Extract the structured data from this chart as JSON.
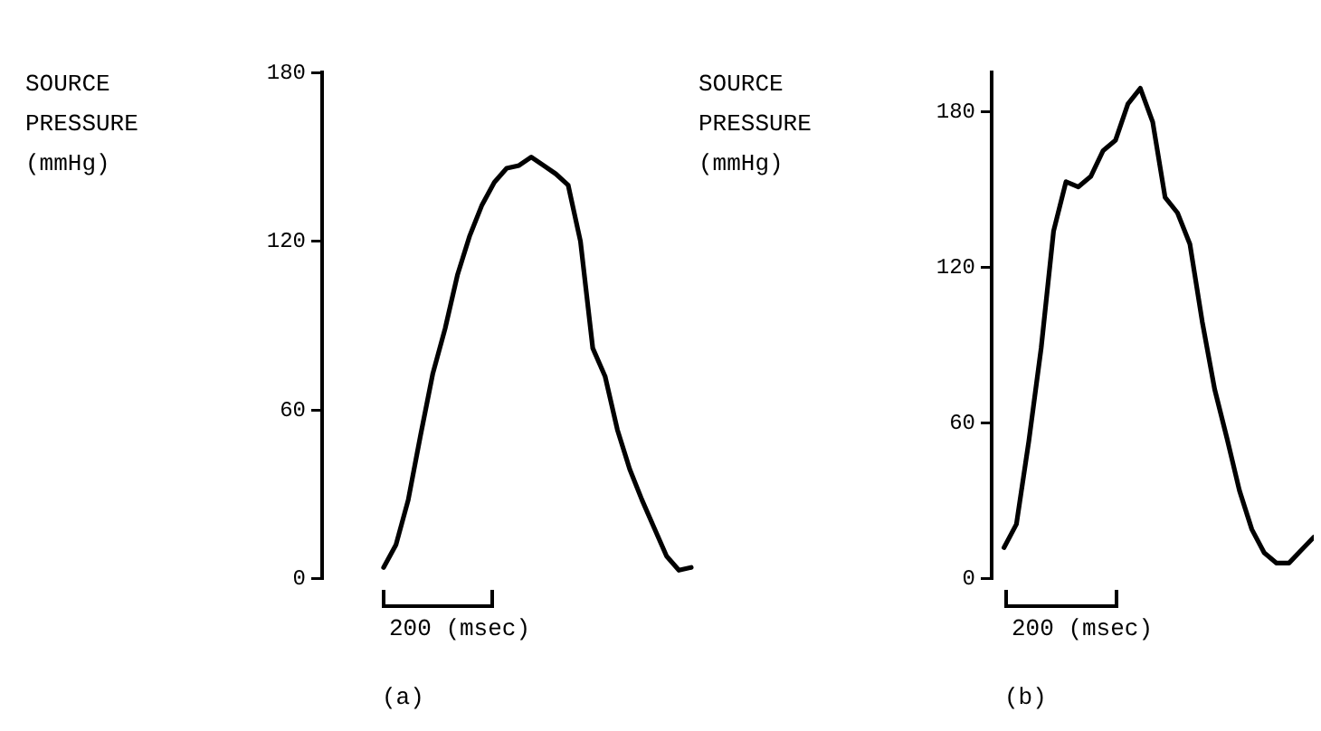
{
  "chart_data": [
    {
      "type": "line",
      "title": "(a)",
      "ylabel": "SOURCE PRESSURE (mmHg)",
      "categories": [
        null,
        null,
        null,
        null,
        null,
        null,
        null,
        null,
        null,
        null,
        null,
        null,
        null,
        null,
        null,
        null,
        null,
        null,
        null,
        null,
        null,
        null,
        null,
        null,
        null,
        null
      ],
      "series": [
        {
          "color": "#000000",
          "values": [
            4,
            12,
            28,
            51,
            73,
            89,
            108,
            122,
            133,
            141,
            146,
            147,
            150,
            147,
            144,
            140,
            120,
            82,
            72,
            53,
            39,
            28,
            18,
            8,
            3,
            4
          ]
        }
      ],
      "ylim": [
        0,
        180
      ],
      "yticks": [
        0,
        60,
        120,
        180
      ],
      "annotations": [
        "200 (msec)"
      ]
    },
    {
      "type": "line",
      "title": "(b)",
      "ylabel": "SOURCE PRESSURE (mmHg)",
      "categories": [
        null,
        null,
        null,
        null,
        null,
        null,
        null,
        null,
        null,
        null,
        null,
        null,
        null,
        null,
        null,
        null,
        null,
        null,
        null,
        null,
        null,
        null,
        null,
        null,
        null,
        null
      ],
      "series": [
        {
          "color": "#000000",
          "values": [
            12,
            21,
            53,
            89,
            134,
            153,
            151,
            155,
            165,
            169,
            183,
            189,
            176,
            147,
            141,
            129,
            99,
            73,
            54,
            34,
            19,
            10,
            6,
            6,
            11,
            16
          ]
        }
      ],
      "ylim": [
        0,
        195
      ],
      "yticks": [
        0,
        60,
        120,
        180
      ],
      "annotations": [
        "200 (msec)"
      ]
    }
  ]
}
